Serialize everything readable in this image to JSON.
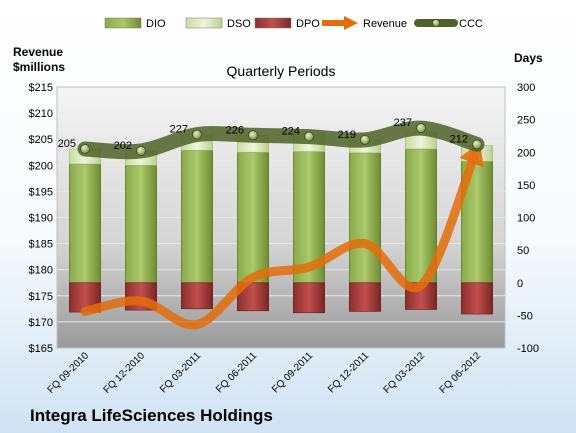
{
  "chart_data": {
    "type": "bar",
    "title": "Quarterly Periods",
    "footer": "Integra LifeSciences Holdings",
    "left_axis_title": [
      "Revenue",
      "$millions"
    ],
    "right_axis_title": "Days",
    "categories": [
      "FQ 09-2010",
      "FQ 12-2010",
      "FQ 03-2011",
      "FQ 06-2011",
      "FQ 09-2011",
      "FQ 12-2011",
      "FQ 03-2012",
      "FQ 06-2012"
    ],
    "legend": [
      {
        "name": "DIO",
        "type": "bar",
        "color": "#77933c"
      },
      {
        "name": "DSO",
        "type": "bar",
        "color": "#d7e4bd"
      },
      {
        "name": "DPO",
        "type": "bar",
        "color": "#953735"
      },
      {
        "name": "Revenue",
        "type": "arrow",
        "color": "#e46c0a"
      },
      {
        "name": "CCC",
        "type": "line",
        "color": "#4f6228"
      }
    ],
    "left_axis": {
      "min": 165,
      "max": 215,
      "step": 5,
      "prefix": "$"
    },
    "right_axis": {
      "min": -100,
      "max": 300,
      "step": 50
    },
    "series": [
      {
        "name": "DIO",
        "axis": "right",
        "values": [
          182,
          180,
          203,
          200,
          201,
          199,
          205,
          186
        ]
      },
      {
        "name": "DSO",
        "axis": "right",
        "values": [
          23,
          22,
          24,
          26,
          26,
          20,
          25,
          24
        ]
      },
      {
        "name": "DPO",
        "axis": "right",
        "values": [
          -45,
          -42,
          -40,
          -43,
          -46,
          -44,
          -41,
          -48
        ]
      },
      {
        "name": "Revenue",
        "axis": "left",
        "values": [
          172,
          174,
          169.5,
          178.5,
          180.5,
          185,
          177,
          203
        ]
      },
      {
        "name": "CCC",
        "axis": "right",
        "values": [
          205,
          202,
          227,
          226,
          224,
          219,
          237,
          212
        ],
        "labels": [
          "205",
          "202",
          "227",
          "226",
          "224",
          "219",
          "237",
          "212"
        ]
      }
    ]
  }
}
